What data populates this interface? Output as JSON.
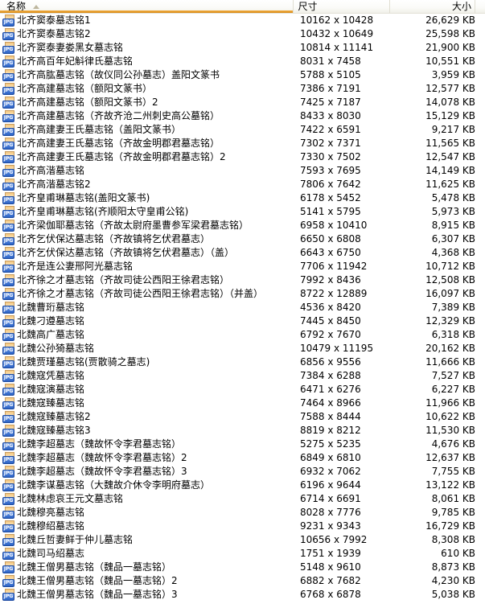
{
  "window": {
    "kind": "file-list-details-view"
  },
  "columns": {
    "name": "名称",
    "dimensions": "尺寸",
    "size": "大小"
  },
  "sort": {
    "column": "名称",
    "direction": "ascending"
  },
  "file_icon": {
    "label": "JPG"
  },
  "colors": {
    "sort_underline": "#e0941f",
    "icon_badge_blue": "#2b62c6",
    "header_separator": "#e0ded2"
  },
  "files": [
    {
      "name": "北齐窦泰墓志铭1",
      "dimensions": "10162 x 10428",
      "size": "26,629 KB"
    },
    {
      "name": "北齐窦泰墓志铭2",
      "dimensions": "10432 x 10649",
      "size": "25,598 KB"
    },
    {
      "name": "北齐窦泰妻娄黑女墓志铭",
      "dimensions": "10814 x 11141",
      "size": "21,900 KB"
    },
    {
      "name": "北齐高百年妃斛律氏墓志铭",
      "dimensions": "8031 x 7458",
      "size": "10,551 KB"
    },
    {
      "name": "北齐高肱墓志铭（故仪同公孙墓志）盖阳文篆书",
      "dimensions": "5788 x 5105",
      "size": "3,959 KB"
    },
    {
      "name": "北齐高建墓志铭（额阳文篆书）",
      "dimensions": "7386 x 7191",
      "size": "12,577 KB"
    },
    {
      "name": "北齐高建墓志铭（额阳文篆书）2",
      "dimensions": "7425 x 7187",
      "size": "14,078 KB"
    },
    {
      "name": "北齐高建墓志铭（齐故齐沧二州刺史高公墓铭）",
      "dimensions": "8433 x 8030",
      "size": "15,129 KB"
    },
    {
      "name": "北齐高建妻王氏墓志铭（盖阳文篆书）",
      "dimensions": "7422 x 6591",
      "size": "9,217 KB"
    },
    {
      "name": "北齐高建妻王氏墓志铭（齐故金明郡君墓志铭）",
      "dimensions": "7302 x 7371",
      "size": "11,565 KB"
    },
    {
      "name": "北齐高建妻王氏墓志铭（齐故金明郡君墓志铭）2",
      "dimensions": "7330 x 7502",
      "size": "12,547 KB"
    },
    {
      "name": "北齐高湝墓志铭",
      "dimensions": "7593 x 7695",
      "size": "14,149 KB"
    },
    {
      "name": "北齐高湝墓志铭2",
      "dimensions": "7806 x 7642",
      "size": "11,625 KB"
    },
    {
      "name": "北齐皇甫琳墓志铭(盖阳文篆书)",
      "dimensions": "6178 x 5452",
      "size": "5,478 KB"
    },
    {
      "name": "北齐皇甫琳墓志铭(齐顺阳太守皇甫公铭)",
      "dimensions": "5141 x 5795",
      "size": "5,973 KB"
    },
    {
      "name": "北齐梁伽耶墓志铭（齐故太尉府墨曹参军梁君墓志铭）",
      "dimensions": "6958 x 10410",
      "size": "8,915 KB"
    },
    {
      "name": "北齐乞伏保达墓志铭（齐故镇将乞伏君墓志）",
      "dimensions": "6650 x 6808",
      "size": "6,307 KB"
    },
    {
      "name": "北齐乞伏保达墓志铭（齐故镇将乞伏君墓志）（盖）",
      "dimensions": "6643 x 6750",
      "size": "4,368 KB"
    },
    {
      "name": "北齐是连公妻邢阿光墓志铭",
      "dimensions": "7706 x 11942",
      "size": "10,712 KB"
    },
    {
      "name": "北齐徐之才墓志铭（齐故司徒公西阳王徐君志铭）",
      "dimensions": "7992 x 8436",
      "size": "12,508 KB"
    },
    {
      "name": "北齐徐之才墓志铭（齐故司徒公西阳王徐君志铭）（并盖）",
      "dimensions": "8722 x 12889",
      "size": "16,097 KB"
    },
    {
      "name": "北魏曹珩墓志铭",
      "dimensions": "4536 x 8420",
      "size": "7,389 KB"
    },
    {
      "name": "北魏刁遵墓志铭",
      "dimensions": "7445 x 8450",
      "size": "12,329 KB"
    },
    {
      "name": "北魏高广墓志铭",
      "dimensions": "6792 x 7670",
      "size": "6,318 KB"
    },
    {
      "name": "北魏公孙猗墓志铭",
      "dimensions": "10479 x 11195",
      "size": "20,162 KB"
    },
    {
      "name": "北魏贾瑾墓志铭(贾散骑之墓志)",
      "dimensions": "6856 x 9556",
      "size": "11,666 KB"
    },
    {
      "name": "北魏寇凭墓志铭",
      "dimensions": "7384 x 6288",
      "size": "7,527 KB"
    },
    {
      "name": "北魏寇演墓志铭",
      "dimensions": "6471 x 6276",
      "size": "6,227 KB"
    },
    {
      "name": "北魏寇臻墓志铭",
      "dimensions": "7464 x 8966",
      "size": "11,966 KB"
    },
    {
      "name": "北魏寇臻墓志铭2",
      "dimensions": "7588 x 8444",
      "size": "10,622 KB"
    },
    {
      "name": "北魏寇臻墓志铭3",
      "dimensions": "8819 x 8212",
      "size": "11,530 KB"
    },
    {
      "name": "北魏李超墓志（魏故怀令李君墓志铭）",
      "dimensions": "5275 x 5235",
      "size": "4,676 KB"
    },
    {
      "name": "北魏李超墓志（魏故怀令李君墓志铭）2",
      "dimensions": "6849 x 6810",
      "size": "12,637 KB"
    },
    {
      "name": "北魏李超墓志（魏故怀令李君墓志铭）3",
      "dimensions": "6932 x 7062",
      "size": "7,755 KB"
    },
    {
      "name": "北魏李谋墓志铭（大魏故介休令李明府墓志）",
      "dimensions": "6196 x 9644",
      "size": "13,122 KB"
    },
    {
      "name": "北魏林虑哀王元文墓志铭",
      "dimensions": "6714 x 6691",
      "size": "8,061 KB"
    },
    {
      "name": "北魏穆亮墓志铭",
      "dimensions": "8028 x 7776",
      "size": "9,785 KB"
    },
    {
      "name": "北魏穆绍墓志铭",
      "dimensions": "9231 x 9343",
      "size": "16,729 KB"
    },
    {
      "name": "北魏丘哲妻鲜于仲儿墓志铭",
      "dimensions": "10656 x 7992",
      "size": "8,308 KB"
    },
    {
      "name": "北魏司马绍墓志",
      "dimensions": "1751 x 1939",
      "size": "610 KB"
    },
    {
      "name": "北魏王僧男墓志铭（魏品一墓志铭）",
      "dimensions": "5148 x 9610",
      "size": "8,873 KB"
    },
    {
      "name": "北魏王僧男墓志铭（魏品一墓志铭）2",
      "dimensions": "6882 x 7682",
      "size": "4,230 KB"
    },
    {
      "name": "北魏王僧男墓志铭（魏品一墓志铭）3",
      "dimensions": "6768 x 6878",
      "size": "5,038 KB"
    }
  ]
}
